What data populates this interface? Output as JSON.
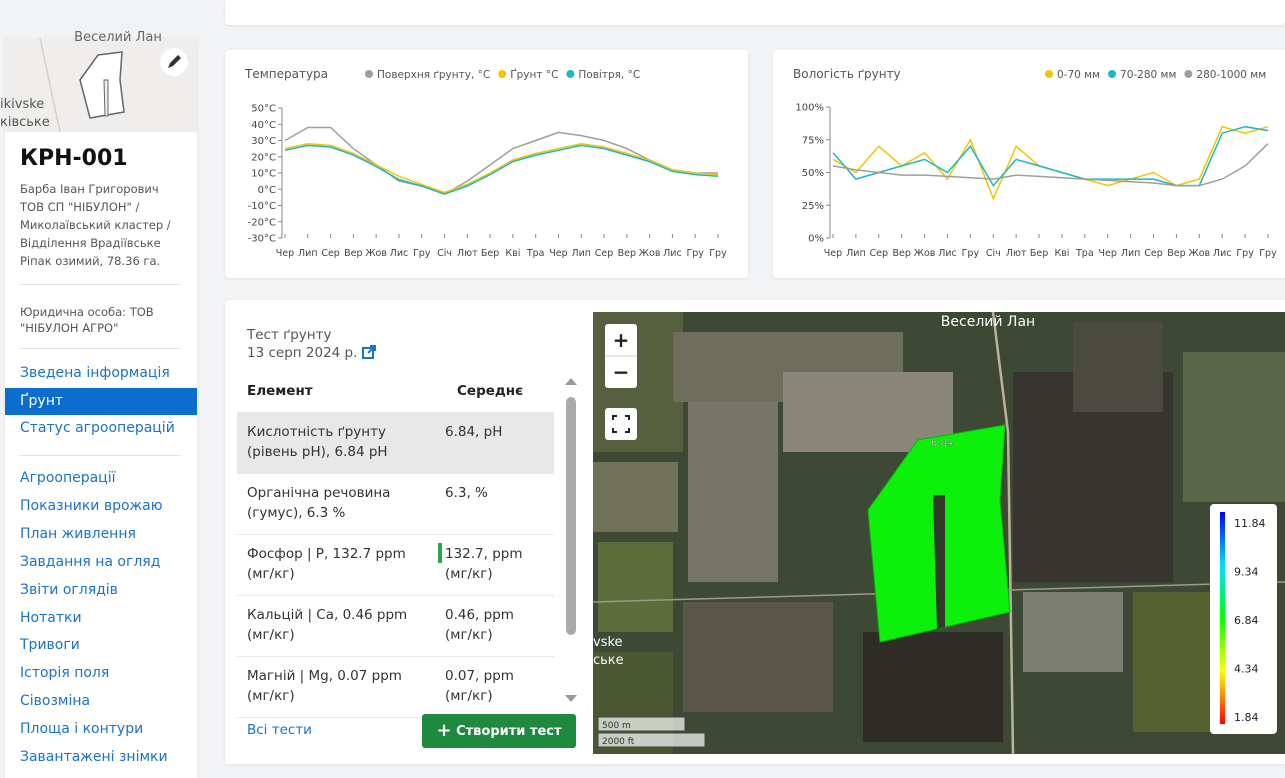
{
  "sidebar": {
    "map_label": "Веселий Лан",
    "place_labels": [
      "ikivske",
      "ківське"
    ],
    "title": "КРН-001",
    "details": [
      "Барба Іван Григорович",
      "ТОВ СП \"НІБУЛОН\" /",
      "Миколаївський кластер /",
      "Відділення Врадіївське",
      "Ріпак озимий, 78.36 га."
    ],
    "legal": "Юридична особа: ТОВ \"НІБУЛОН АГРО\"",
    "nav_main": [
      "Зведена інформація",
      "Ґрунт",
      "Статус агрооперацій"
    ],
    "nav_more": [
      "Агрооперації",
      "Показники врожаю",
      "План живлення",
      "Завдання на огляд",
      "Звіти оглядів",
      "Нотатки",
      "Тривоги",
      "Історія поля",
      "Сівозміна",
      "Площа і контури",
      "Завантажені знімки"
    ]
  },
  "chart_data": [
    {
      "type": "line",
      "title": "Температура",
      "categories": [
        "Чер",
        "Лип",
        "Сер",
        "Вер",
        "Жов",
        "Лис",
        "Гру",
        "Січ",
        "Лют",
        "Бер",
        "Кві",
        "Тра",
        "Чер",
        "Лип",
        "Сер",
        "Вер",
        "Жов",
        "Лис",
        "Гру",
        "Гру"
      ],
      "series": [
        {
          "name": "Поверхня ґрунту, °C",
          "color": "#9e9e9e",
          "values": [
            30,
            38,
            38,
            25,
            15,
            5,
            2,
            -3,
            5,
            15,
            25,
            30,
            35,
            33,
            30,
            25,
            18,
            12,
            10,
            10
          ]
        },
        {
          "name": "Ґрунт °C",
          "color": "#f5c400",
          "values": [
            25,
            28,
            27,
            22,
            15,
            8,
            3,
            -2,
            3,
            10,
            18,
            22,
            25,
            28,
            26,
            22,
            18,
            12,
            10,
            9
          ]
        },
        {
          "name": "Повітря, °C",
          "color": "#1bb8c8",
          "values": [
            24,
            27,
            26,
            21,
            14,
            6,
            2,
            -3,
            2,
            9,
            17,
            21,
            24,
            27,
            25,
            21,
            17,
            11,
            9,
            8
          ]
        }
      ],
      "ylim": [
        -30,
        50
      ],
      "yticks": [
        {
          "value": 50,
          "label": "50°C"
        },
        {
          "value": 40,
          "label": "40°C"
        },
        {
          "value": 30,
          "label": "30°C"
        },
        {
          "value": 20,
          "label": "20°C"
        },
        {
          "value": 10,
          "label": "10°C"
        },
        {
          "value": 0,
          "label": "0°C"
        },
        {
          "value": -10,
          "label": "-10°C"
        },
        {
          "value": -20,
          "label": "-20°C"
        },
        {
          "value": -30,
          "label": "-30°C"
        }
      ]
    },
    {
      "type": "line",
      "title": "Вологість ґрунту",
      "categories": [
        "Чер",
        "Лип",
        "Сер",
        "Вер",
        "Жов",
        "Лис",
        "Гру",
        "Січ",
        "Лют",
        "Бер",
        "Кві",
        "Тра",
        "Чер",
        "Лип",
        "Сер",
        "Вер",
        "Жов",
        "Лис",
        "Гру",
        "Гру"
      ],
      "series": [
        {
          "name": "0-70 мм",
          "color": "#f5c400",
          "values": [
            60,
            50,
            70,
            55,
            65,
            45,
            75,
            30,
            70,
            55,
            50,
            45,
            40,
            45,
            50,
            40,
            45,
            85,
            80,
            85
          ]
        },
        {
          "name": "70-280 мм",
          "color": "#1bb8c8",
          "values": [
            65,
            45,
            50,
            55,
            60,
            50,
            70,
            40,
            60,
            55,
            50,
            45,
            45,
            45,
            45,
            40,
            40,
            80,
            85,
            82
          ]
        },
        {
          "name": "280-1000 мм",
          "color": "#9e9e9e",
          "values": [
            55,
            52,
            50,
            48,
            48,
            47,
            46,
            45,
            48,
            47,
            46,
            45,
            44,
            43,
            42,
            40,
            40,
            45,
            55,
            72
          ]
        }
      ],
      "ylim": [
        0,
        100
      ],
      "yticks": [
        {
          "value": 0,
          "label": "0%"
        },
        {
          "value": 25,
          "label": "25%"
        },
        {
          "value": 50,
          "label": "50%"
        },
        {
          "value": 75,
          "label": "75%"
        },
        {
          "value": 100,
          "label": "100%"
        }
      ]
    }
  ],
  "soil_test": {
    "title": "Тест ґрунту",
    "date": "13 серп 2024 р.",
    "headers": [
      "Елемент",
      "Середнє"
    ],
    "rows": [
      [
        "Кислотність ґрунту (рівень pH), 6.84 pH",
        "6.84, pH"
      ],
      [
        "Органічна речовина (гумус), 6.3 %",
        "6.3, %"
      ],
      [
        "Фосфор | P, 132.7 ppm (мг/кг)",
        "132.7, ppm (мг/кг)"
      ],
      [
        "Кальцій | Ca, 0.46 ppm (мг/кг)",
        "0.46, ppm (мг/кг)"
      ],
      [
        "Магній | Mg, 0.07 ppm (мг/кг)",
        "0.07, ppm (мг/кг)"
      ]
    ],
    "all_tests": "Всі тести",
    "create": "Створити тест"
  },
  "map": {
    "zoom_in": "+",
    "zoom_out": "−",
    "village": "Веселий Лан",
    "place_labels": [
      "vske",
      "ське"
    ],
    "field_label": "6.84",
    "scale": [
      "500 m",
      "2000 ft"
    ],
    "legend": [
      "11.84",
      "9.34",
      "6.84",
      "4.34",
      "1.84"
    ]
  }
}
